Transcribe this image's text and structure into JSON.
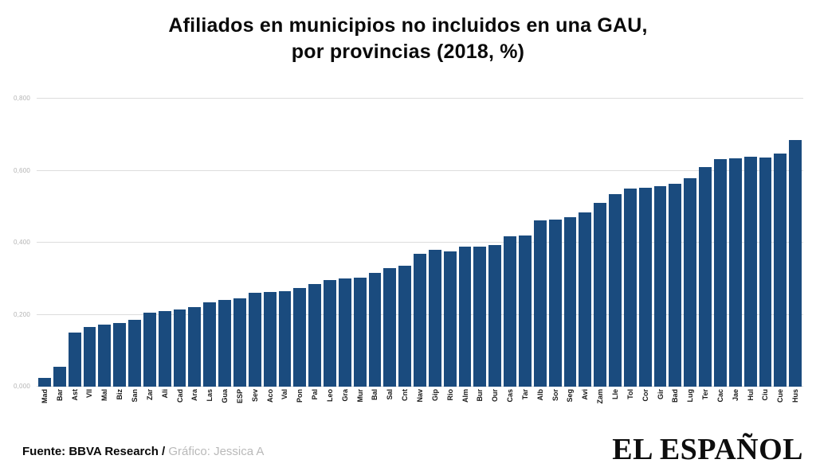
{
  "chart_data": {
    "type": "bar",
    "title": "Afiliados en municipios no incluidos en una GAU,\npor provincias (2018, %)",
    "categories": [
      "Mad",
      "Bar",
      "Ast",
      "Vll",
      "Mal",
      "Biz",
      "San",
      "Zar",
      "Ali",
      "Cad",
      "Ara",
      "Las",
      "Gua",
      "ESP",
      "Sev",
      "Aco",
      "Val",
      "Pon",
      "Pal",
      "Leo",
      "Gra",
      "Mur",
      "Bal",
      "Sal",
      "Cnt",
      "Nav",
      "Gip",
      "Rio",
      "Alm",
      "Bur",
      "Our",
      "Cas",
      "Tar",
      "Alb",
      "Sor",
      "Seg",
      "Avi",
      "Zam",
      "Lle",
      "Tol",
      "Cor",
      "Gir",
      "Bad",
      "Lug",
      "Ter",
      "Cac",
      "Jae",
      "Hul",
      "Ciu",
      "Cue",
      "Hus"
    ],
    "values": [
      0.025,
      0.055,
      0.15,
      0.165,
      0.172,
      0.176,
      0.185,
      0.205,
      0.21,
      0.215,
      0.22,
      0.235,
      0.24,
      0.245,
      0.26,
      0.263,
      0.266,
      0.275,
      0.285,
      0.297,
      0.3,
      0.303,
      0.315,
      0.33,
      0.335,
      0.368,
      0.38,
      0.376,
      0.388,
      0.39,
      0.393,
      0.418,
      0.421,
      0.462,
      0.465,
      0.47,
      0.485,
      0.51,
      0.535,
      0.55,
      0.553,
      0.557,
      0.563,
      0.58,
      0.61,
      0.633,
      0.635,
      0.638,
      0.637,
      0.648,
      0.685
    ],
    "ylim": [
      0,
      0.8
    ],
    "ticks": [
      {
        "label": "0,000",
        "value": 0.0
      },
      {
        "label": "0,200",
        "value": 0.2
      },
      {
        "label": "0,400",
        "value": 0.4
      },
      {
        "label": "0,600",
        "value": 0.6
      },
      {
        "label": "0,800",
        "value": 0.8
      }
    ],
    "bar_color": "#1a4b7e",
    "grid": true,
    "legend": "none",
    "xlabel": "",
    "ylabel": ""
  },
  "footer": {
    "source_label": "Fuente: BBVA Research /",
    "credit_label": "Gráfico: Jessica A",
    "logo_text": "EL ESPAÑOL"
  }
}
